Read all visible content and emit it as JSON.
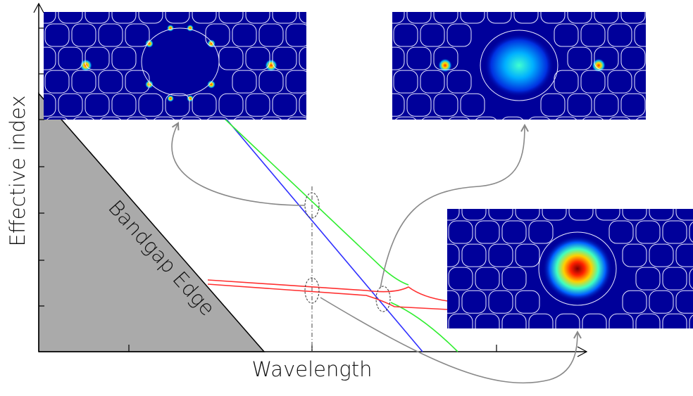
{
  "axes": {
    "x_label": "Wavelength",
    "y_label": "Effective index"
  },
  "regions": {
    "bandgap_label": "Bandgap Edge"
  }
}
